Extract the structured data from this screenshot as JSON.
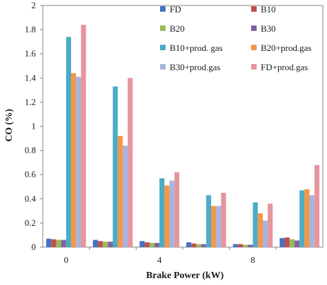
{
  "chart_data": {
    "type": "bar",
    "title": "",
    "xlabel": "Brake Power (kW)",
    "ylabel": "CO (%)",
    "ylim": [
      0,
      2
    ],
    "yticks": [
      "0",
      "0.2",
      "0.4",
      "0.6",
      "0.8",
      "1",
      "1.2",
      "1.4",
      "1.6",
      "1.8",
      "2"
    ],
    "categories": [
      "0",
      "",
      "4",
      "",
      "8",
      ""
    ],
    "grid": false,
    "legend_position": "top-right",
    "series": [
      {
        "name": "FD",
        "color": "#4472C4",
        "values": [
          0.07,
          0.06,
          0.05,
          0.04,
          0.025,
          0.075
        ]
      },
      {
        "name": "B10",
        "color": "#C0504D",
        "values": [
          0.065,
          0.05,
          0.04,
          0.03,
          0.025,
          0.08
        ]
      },
      {
        "name": "B20",
        "color": "#9BBB59",
        "values": [
          0.06,
          0.045,
          0.035,
          0.025,
          0.02,
          0.065
        ]
      },
      {
        "name": "B30",
        "color": "#8064A2",
        "values": [
          0.06,
          0.045,
          0.035,
          0.025,
          0.02,
          0.055
        ]
      },
      {
        "name": "B10+prod. gas",
        "color": "#4BACC6",
        "values": [
          1.74,
          1.33,
          0.57,
          0.43,
          0.37,
          0.47
        ]
      },
      {
        "name": "B20+prod.gas",
        "color": "#F79646",
        "values": [
          1.44,
          0.92,
          0.51,
          0.34,
          0.28,
          0.48
        ]
      },
      {
        "name": "B30+prod.gas",
        "color": "#A5B5DE",
        "values": [
          1.41,
          0.84,
          0.55,
          0.34,
          0.22,
          0.43
        ]
      },
      {
        "name": "FD+prod.gas",
        "color": "#E6959C",
        "values": [
          1.84,
          1.4,
          0.62,
          0.45,
          0.36,
          0.68
        ]
      }
    ]
  }
}
